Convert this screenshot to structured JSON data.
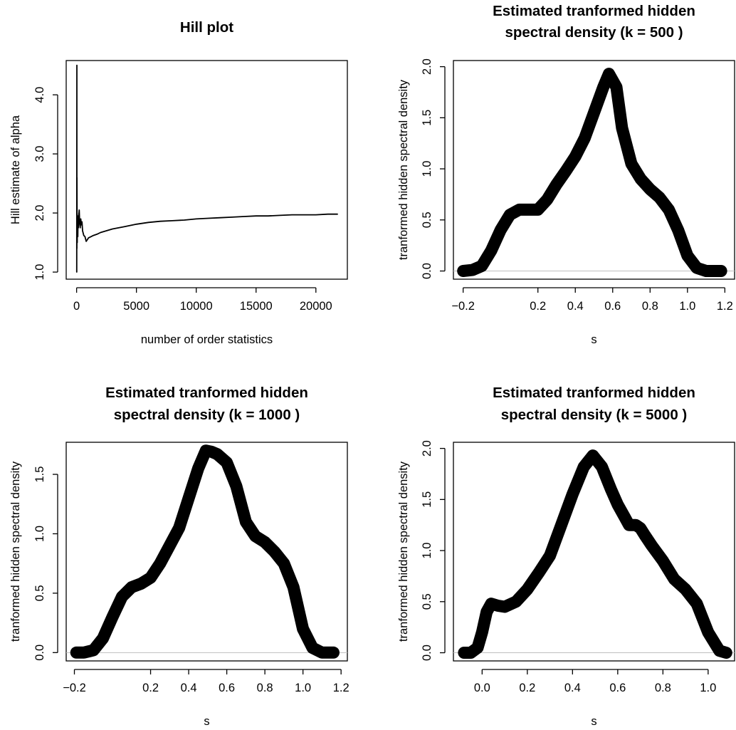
{
  "chart_data": [
    {
      "type": "line",
      "title": [
        "Hill plot"
      ],
      "xlabel": "number of order statistics",
      "ylabel": "Hill estimate of alpha",
      "xlim": [
        -870,
        22630
      ],
      "ylim": [
        0.88,
        4.58
      ],
      "xticks": [
        0,
        5000,
        10000,
        15000,
        20000
      ],
      "xtick_labels": [
        "0",
        "5000",
        "10000",
        "15000",
        "20000"
      ],
      "yticks": [
        1.0,
        2.0,
        3.0,
        4.0
      ],
      "ytick_labels": [
        "1.0",
        "2.0",
        "3.0",
        "4.0"
      ],
      "baseline": null,
      "series": [
        {
          "style": "thin",
          "x": [
            10,
            20,
            20,
            30,
            40,
            40,
            50,
            60,
            70,
            80,
            100,
            120,
            150,
            180,
            220,
            260,
            300,
            350,
            400,
            450,
            500,
            600,
            700,
            800,
            900,
            1000,
            1200,
            1400,
            1700,
            2000,
            2500,
            3000,
            4000,
            5000,
            6000,
            7000,
            8000,
            9000,
            10000,
            11000,
            12000,
            13000,
            14000,
            15000,
            16000,
            17000,
            18000,
            19000,
            20000,
            21000,
            21800
          ],
          "y": [
            1.0,
            4.5,
            1.4,
            2.6,
            1.7,
            2.0,
            1.5,
            1.85,
            1.7,
            1.95,
            1.6,
            1.9,
            1.75,
            1.95,
            2.05,
            1.82,
            1.75,
            1.9,
            1.8,
            1.85,
            1.7,
            1.62,
            1.6,
            1.52,
            1.55,
            1.58,
            1.6,
            1.62,
            1.64,
            1.67,
            1.7,
            1.73,
            1.77,
            1.81,
            1.84,
            1.86,
            1.87,
            1.88,
            1.9,
            1.91,
            1.92,
            1.93,
            1.94,
            1.95,
            1.95,
            1.96,
            1.97,
            1.97,
            1.97,
            1.98,
            1.98
          ]
        }
      ]
    },
    {
      "type": "scatter",
      "title": [
        "Estimated tranformed hidden",
        "spectral density (k =  500 )"
      ],
      "xlabel": "s",
      "ylabel": "tranformed hidden spectral density",
      "xlim": [
        -0.252,
        1.252
      ],
      "ylim": [
        -0.08,
        2.06
      ],
      "xticks": [
        -0.2,
        0.2,
        0.4,
        0.6,
        0.8,
        1.0,
        1.2
      ],
      "xtick_labels": [
        "−0.2",
        "0.2",
        "0.4",
        "0.6",
        "0.8",
        "1.0",
        "1.2"
      ],
      "yticks": [
        0.0,
        0.5,
        1.0,
        1.5,
        2.0
      ],
      "ytick_labels": [
        "0.0",
        "0.5",
        "1.0",
        "1.5",
        "2.0"
      ],
      "baseline": 0,
      "series": [
        {
          "style": "thick",
          "x": [
            -0.2,
            -0.15,
            -0.1,
            -0.05,
            0.0,
            0.05,
            0.1,
            0.15,
            0.2,
            0.25,
            0.3,
            0.35,
            0.4,
            0.45,
            0.5,
            0.55,
            0.58,
            0.62,
            0.65,
            0.7,
            0.75,
            0.8,
            0.85,
            0.9,
            0.95,
            1.0,
            1.05,
            1.1,
            1.18
          ],
          "y": [
            0.0,
            0.01,
            0.05,
            0.2,
            0.4,
            0.55,
            0.6,
            0.6,
            0.6,
            0.7,
            0.85,
            0.98,
            1.12,
            1.3,
            1.55,
            1.8,
            1.93,
            1.8,
            1.4,
            1.05,
            0.9,
            0.8,
            0.72,
            0.6,
            0.4,
            0.15,
            0.03,
            0.0,
            0.0
          ]
        }
      ]
    },
    {
      "type": "scatter",
      "title": [
        "Estimated tranformed hidden",
        "spectral density (k =  1000 )"
      ],
      "xlabel": "s",
      "ylabel": "tranformed hidden spectral density",
      "xlim": [
        -0.243,
        1.233
      ],
      "ylim": [
        -0.07,
        1.77
      ],
      "xticks": [
        -0.2,
        0.2,
        0.4,
        0.6,
        0.8,
        1.0,
        1.2
      ],
      "xtick_labels": [
        "−0.2",
        "0.2",
        "0.4",
        "0.6",
        "0.8",
        "1.0",
        "1.2"
      ],
      "yticks": [
        0.0,
        0.5,
        1.0,
        1.5
      ],
      "ytick_labels": [
        "0.0",
        "0.5",
        "1.0",
        "1.5"
      ],
      "baseline": 0,
      "series": [
        {
          "style": "thick",
          "x": [
            -0.19,
            -0.15,
            -0.1,
            -0.05,
            0.0,
            0.05,
            0.1,
            0.15,
            0.2,
            0.25,
            0.3,
            0.35,
            0.4,
            0.45,
            0.49,
            0.52,
            0.55,
            0.6,
            0.65,
            0.7,
            0.75,
            0.8,
            0.85,
            0.9,
            0.95,
            1.0,
            1.05,
            1.1,
            1.16
          ],
          "y": [
            0.0,
            0.0,
            0.02,
            0.12,
            0.3,
            0.47,
            0.55,
            0.58,
            0.63,
            0.75,
            0.9,
            1.05,
            1.3,
            1.55,
            1.7,
            1.69,
            1.67,
            1.6,
            1.4,
            1.1,
            0.98,
            0.93,
            0.85,
            0.75,
            0.55,
            0.2,
            0.04,
            0.0,
            0.0
          ]
        }
      ]
    },
    {
      "type": "scatter",
      "title": [
        "Estimated tranformed hidden",
        "spectral density (k =  5000 )"
      ],
      "xlabel": "s",
      "ylabel": "tranformed hidden spectral density",
      "xlim": [
        -0.127,
        1.117
      ],
      "ylim": [
        -0.08,
        2.06
      ],
      "xticks": [
        0.0,
        0.2,
        0.4,
        0.6,
        0.8,
        1.0
      ],
      "xtick_labels": [
        "0.0",
        "0.2",
        "0.4",
        "0.6",
        "0.8",
        "1.0"
      ],
      "yticks": [
        0.0,
        0.5,
        1.0,
        1.5,
        2.0
      ],
      "ytick_labels": [
        "0.0",
        "0.5",
        "1.0",
        "1.5",
        "2.0"
      ],
      "baseline": 0,
      "series": [
        {
          "style": "thick",
          "x": [
            -0.08,
            -0.05,
            -0.02,
            0.0,
            0.02,
            0.04,
            0.07,
            0.1,
            0.15,
            0.2,
            0.25,
            0.3,
            0.35,
            0.4,
            0.45,
            0.49,
            0.53,
            0.57,
            0.6,
            0.63,
            0.65,
            0.68,
            0.7,
            0.72,
            0.75,
            0.8,
            0.85,
            0.9,
            0.95,
            1.0,
            1.05,
            1.08
          ],
          "y": [
            0.0,
            0.0,
            0.05,
            0.2,
            0.4,
            0.48,
            0.46,
            0.45,
            0.5,
            0.62,
            0.78,
            0.95,
            1.25,
            1.55,
            1.82,
            1.93,
            1.82,
            1.6,
            1.45,
            1.33,
            1.25,
            1.25,
            1.22,
            1.15,
            1.05,
            0.9,
            0.72,
            0.62,
            0.48,
            0.2,
            0.02,
            0.0
          ]
        }
      ]
    }
  ]
}
